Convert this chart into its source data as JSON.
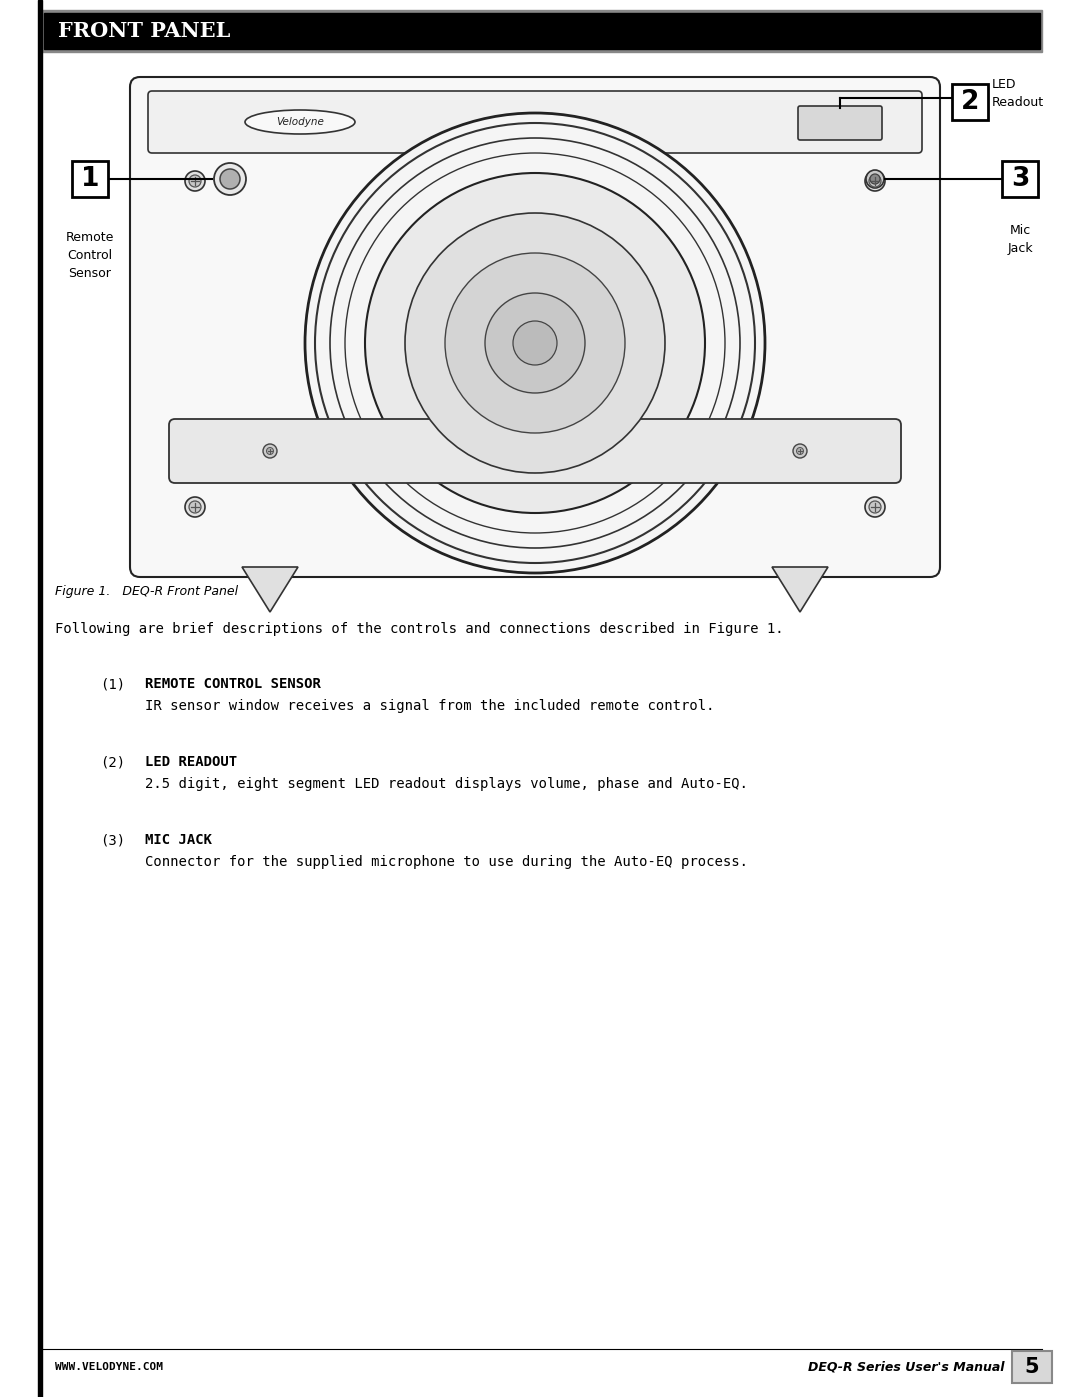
{
  "title": "FRONT PANEL",
  "title_bg": "#000000",
  "title_fg": "#ffffff",
  "page_bg": "#ffffff",
  "left_bar_color": "#000000",
  "figure_caption": "Figure 1.   DEQ-R Front Panel",
  "intro_text": "Following are brief descriptions of the controls and connections described in Figure 1.",
  "items": [
    {
      "number": "(1)",
      "heading": "REMOTE CONTROL SENSOR",
      "description": "IR sensor window receives a signal from the included remote control."
    },
    {
      "number": "(2)",
      "heading": "LED READOUT",
      "description": "2.5 digit, eight segment LED readout displays volume, phase and Auto-EQ."
    },
    {
      "number": "(3)",
      "heading": "MIC JACK",
      "description": "Connector for the supplied microphone to use during the Auto-EQ process."
    }
  ],
  "footer_left": "WWW.VELODYNE.COM",
  "footer_right": "DEQ-R Series User's Manual",
  "page_number": "5",
  "callout_label_2_text": "LED\nReadout",
  "callout_label_1_text": "Remote\nControl\nSensor",
  "callout_label_3_text": "Mic\nJack"
}
